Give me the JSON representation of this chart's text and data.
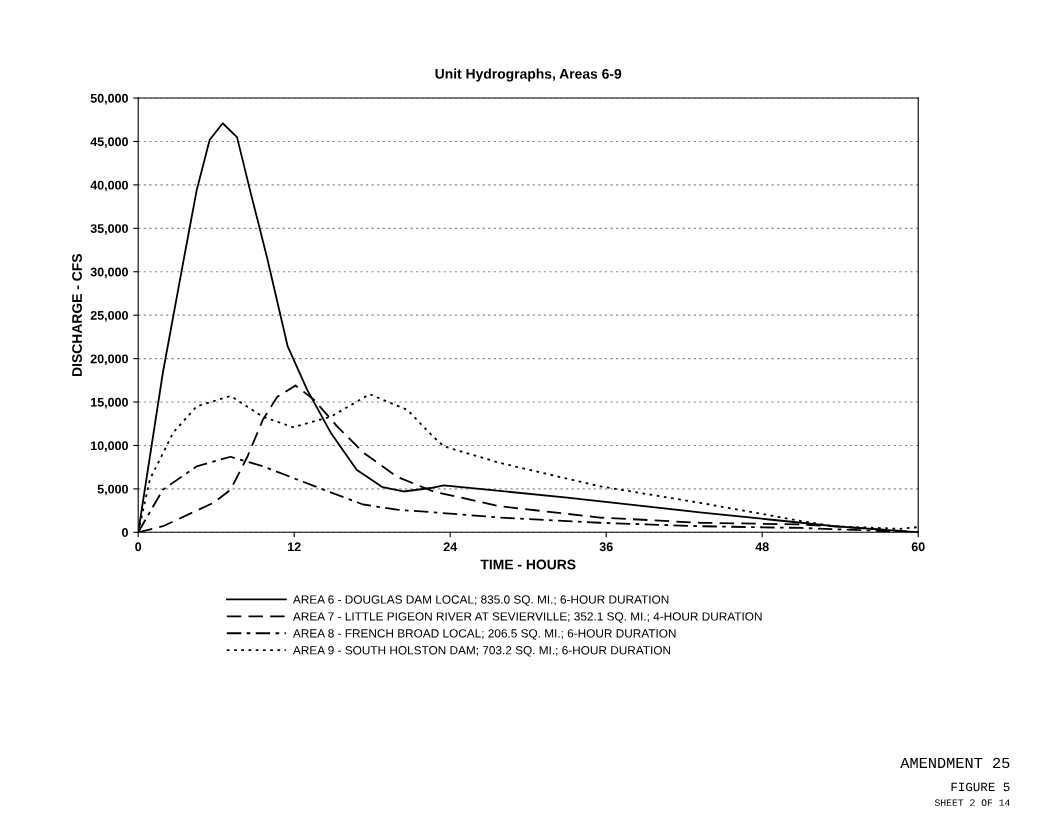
{
  "chart_data": {
    "type": "line",
    "title": "Unit Hydrographs, Areas 6-9",
    "xlabel": "TIME - HOURS",
    "ylabel": "DISCHARGE - CFS",
    "xlim": [
      0,
      60
    ],
    "xticks": [
      0,
      12,
      24,
      36,
      48,
      60
    ],
    "ylim": [
      0,
      50000
    ],
    "yticks": [
      0,
      {
        "value": 5000,
        "label": "5,000"
      },
      {
        "value": 10000,
        "label": "10,000"
      },
      {
        "value": 15000,
        "label": "15,000"
      },
      {
        "value": 20000,
        "label": "20,000"
      },
      {
        "value": 25000,
        "label": "25,000"
      },
      {
        "value": 30000,
        "label": "30,000"
      },
      {
        "value": 35000,
        "label": "35,000"
      },
      {
        "value": 40000,
        "label": "40,000"
      },
      {
        "value": 45000,
        "label": "45,000"
      },
      {
        "value": 50000,
        "label": "50,000"
      }
    ],
    "grid": "y",
    "legend": "bottom",
    "marker": "none",
    "series": [
      {
        "name": "AREA 6 - DOUGLAS DAM LOCAL; 835.0 SQ. MI.; 6-HOUR DURATION",
        "color": "#000000",
        "line_style": "solid",
        "x": [
          0,
          1.9,
          3.5,
          4.5,
          5.5,
          6.5,
          7.6,
          8.6,
          9.9,
          11.5,
          13,
          14.8,
          16.8,
          18.8,
          20.4,
          22.5,
          23.5,
          33,
          43.2,
          51,
          53.5,
          60
        ],
        "values": [
          0,
          18400,
          31400,
          39400,
          45200,
          47100,
          45500,
          39400,
          31700,
          21400,
          16400,
          11500,
          7200,
          5200,
          4700,
          5100,
          5400,
          4000,
          2300,
          1100,
          700,
          0
        ]
      },
      {
        "name": "AREA 7 - LITTLE PIGEON RIVER AT SEVIERVILLE; 352.1 SQ. MI.; 4-HOUR DURATION",
        "color": "#000000",
        "line_style": "dashed",
        "x": [
          0,
          1.9,
          5.8,
          7.1,
          8.4,
          9.6,
          10.7,
          12.1,
          13.5,
          15.3,
          17.3,
          19.9,
          22.7,
          27.8,
          35.5,
          43.2,
          51,
          53.5,
          60
        ],
        "values": [
          0,
          700,
          3400,
          4900,
          8700,
          13000,
          15600,
          16900,
          15300,
          12200,
          9200,
          6400,
          4700,
          3000,
          1700,
          1100,
          900,
          700,
          0
        ]
      },
      {
        "name": "AREA 8 - FRENCH BROAD LOCAL; 206.5 SQ. MI.; 6-HOUR DURATION",
        "color": "#000000",
        "line_style": "dashdot",
        "x": [
          0,
          1.9,
          4.5,
          7.1,
          9.6,
          12.2,
          14.8,
          17.3,
          19.9,
          22.7,
          27.8,
          35.5,
          43.2,
          51,
          60
        ],
        "values": [
          0,
          4900,
          7600,
          8700,
          7600,
          6100,
          4600,
          3200,
          2600,
          2300,
          1700,
          1100,
          700,
          500,
          0
        ]
      },
      {
        "name": "AREA 9 - SOUTH HOLSTON DAM; 703.2 SQ. MI.; 6-HOUR DURATION",
        "color": "#000000",
        "line_style": "dotted",
        "x": [
          0,
          0.9,
          2.7,
          4.5,
          7.1,
          9.6,
          11.9,
          14.8,
          17.8,
          20.7,
          22.5,
          23.5,
          27.8,
          35.5,
          43.2,
          51,
          53.5,
          58.6,
          60
        ],
        "values": [
          0,
          6100,
          11500,
          14500,
          15700,
          13300,
          12100,
          13300,
          15900,
          14100,
          11300,
          9900,
          8000,
          5300,
          3400,
          1300,
          700,
          400,
          600
        ]
      }
    ],
    "annotations": [
      "AMENDMENT 25",
      "FIGURE 5",
      "SHEET 2 OF 14"
    ]
  }
}
